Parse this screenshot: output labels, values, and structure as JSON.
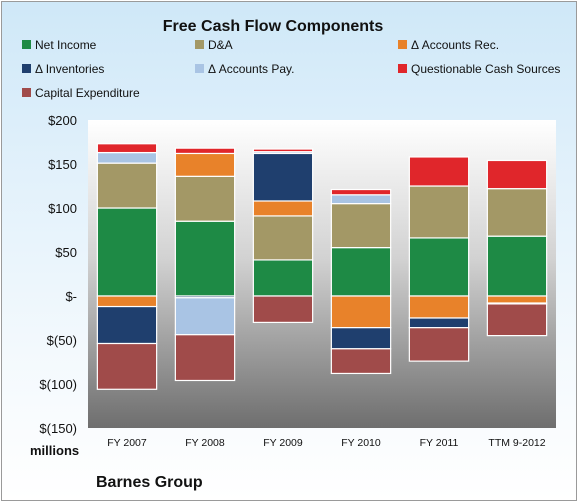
{
  "chart_data": {
    "type": "bar",
    "stacked": true,
    "title": "Free Cash Flow Components",
    "categories": [
      "FY 2007",
      "FY 2008",
      "FY 2009",
      "FY 2010",
      "FY 2011",
      "TTM 9-2012"
    ],
    "ylim": [
      -150,
      200
    ],
    "yticks": [
      200,
      150,
      100,
      50,
      0,
      -50,
      -100,
      -150
    ],
    "ytick_labels": [
      "$200",
      "$150",
      "$100",
      "$50",
      "$-",
      "$(50)",
      "$(100)",
      "$(150)"
    ],
    "y_unit_label": "millions",
    "legend_position": "top",
    "grid": false,
    "series": [
      {
        "name": "Net Income",
        "color": "#1e8a45",
        "values": [
          100,
          85,
          41,
          55,
          66,
          68
        ]
      },
      {
        "name": "D&A",
        "color": "#a39866",
        "values": [
          51,
          51,
          50,
          50,
          59,
          54
        ]
      },
      {
        "name": "Δ Accounts Rec.",
        "color": "#e8822a",
        "values": [
          -12,
          26,
          17,
          -36,
          -25,
          -8
        ]
      },
      {
        "name": "Δ Inventories",
        "color": "#1f3f6e",
        "values": [
          -42,
          -2,
          54,
          -24,
          -11,
          -1
        ]
      },
      {
        "name": "Δ Accounts Pay.",
        "color": "#a9c4e4",
        "values": [
          12,
          -42,
          2,
          10,
          0,
          0
        ]
      },
      {
        "name": "Questionable Cash Sources",
        "color": "#e0262b",
        "values": [
          10,
          6,
          3,
          6,
          33,
          32
        ]
      },
      {
        "name": "Capital Expenditure",
        "color": "#a04b4a",
        "values": [
          -52,
          -52,
          -30,
          -28,
          -38,
          -36
        ]
      }
    ]
  },
  "footer": "Barnes Group"
}
